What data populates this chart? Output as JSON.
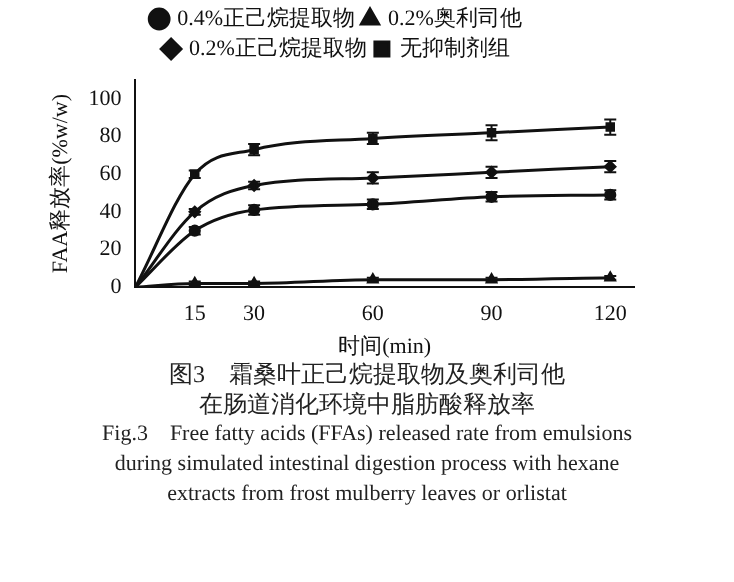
{
  "chart_data": {
    "type": "line",
    "xlabel": "时间(min)",
    "ylabel": "FAA释放率(%w/w)",
    "x": [
      0,
      15,
      30,
      60,
      90,
      120
    ],
    "xlim": [
      0,
      126
    ],
    "xticks": [
      15,
      30,
      60,
      90,
      120
    ],
    "ylim": [
      0,
      110
    ],
    "yticks": [
      0,
      20,
      40,
      60,
      80,
      100
    ],
    "grid": false,
    "legend": "top",
    "series": [
      {
        "name": "0.4%正己烷提取物",
        "color": "#111111",
        "marker": "circle",
        "values": [
          0,
          30,
          41,
          44,
          48,
          49
        ],
        "errors": [
          null,
          2,
          2.5,
          2.5,
          2.5,
          2.5
        ]
      },
      {
        "name": "0.2%奥利司他",
        "color": "#111111",
        "marker": "triangle",
        "values": [
          0,
          2,
          2,
          4,
          4,
          5
        ],
        "errors": [
          null,
          1,
          1,
          1,
          1,
          1
        ]
      },
      {
        "name": "0.2%正己烷提取物",
        "color": "#111111",
        "marker": "diamond",
        "values": [
          0,
          40,
          54,
          58,
          61,
          64
        ],
        "errors": [
          null,
          1.5,
          2,
          3,
          3,
          3
        ]
      },
      {
        "name": "无抑制剂组",
        "color": "#111111",
        "marker": "square",
        "values": [
          0,
          60,
          73,
          79,
          82,
          85
        ],
        "errors": [
          null,
          2,
          3,
          3,
          4,
          4
        ]
      }
    ],
    "annotations": [
      "图3　霜桑叶正己烷提取物及奥利司他",
      "在肠道消化环境中脂肪酸释放率",
      "Fig.3　Free fatty acids (FFAs) released rate from emulsions",
      "during simulated intestinal digestion process with hexane",
      "extracts from frost mulberry leaves or orlistat"
    ]
  }
}
